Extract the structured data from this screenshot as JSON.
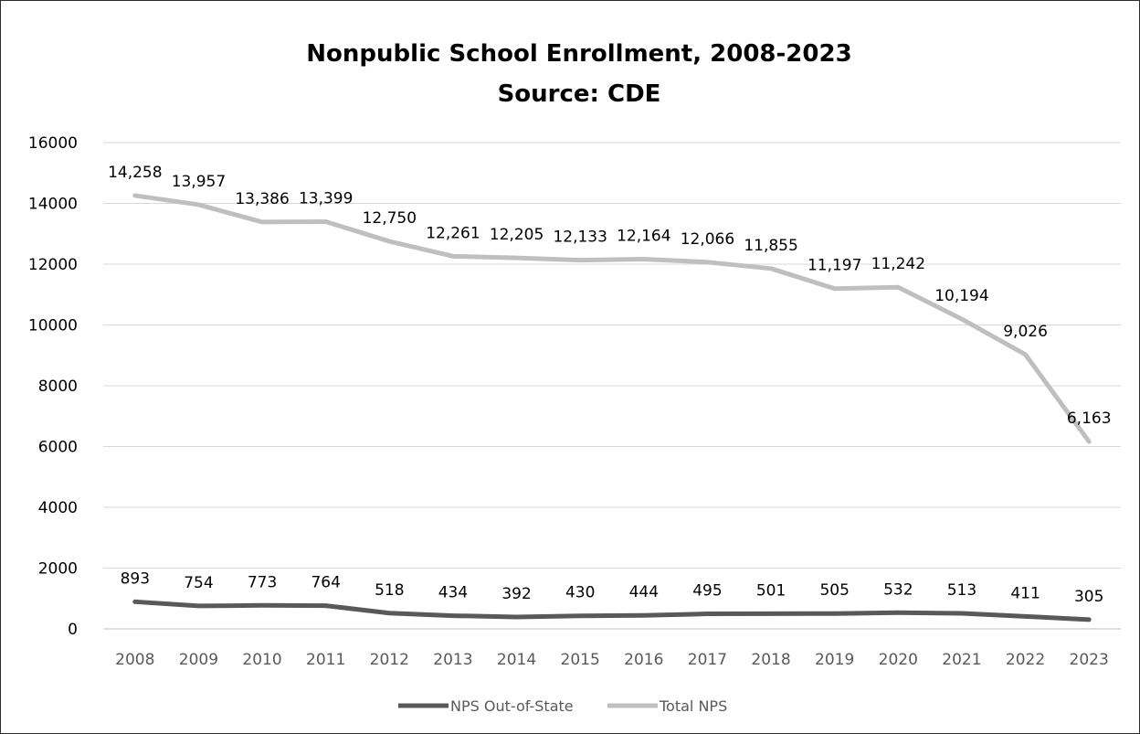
{
  "chart_data": {
    "type": "line",
    "title": "Nonpublic School Enrollment, 2008-2023",
    "subtitle": "Source:  CDE",
    "categories": [
      "2008",
      "2009",
      "2010",
      "2011",
      "2012",
      "2013",
      "2014",
      "2015",
      "2016",
      "2017",
      "2018",
      "2019",
      "2020",
      "2021",
      "2022",
      "2023"
    ],
    "ylim": [
      0,
      16000
    ],
    "yticks": [
      "0",
      "2000",
      "4000",
      "6000",
      "8000",
      "10000",
      "12000",
      "14000",
      "16000"
    ],
    "grid": true,
    "legend_position": "bottom",
    "series": [
      {
        "name": "NPS Out-of-State",
        "color": "#595959",
        "values": [
          893,
          754,
          773,
          764,
          518,
          434,
          392,
          430,
          444,
          495,
          501,
          505,
          532,
          513,
          411,
          305
        ],
        "labels": [
          "893",
          "754",
          "773",
          "764",
          "518",
          "434",
          "392",
          "430",
          "444",
          "495",
          "501",
          "505",
          "532",
          "513",
          "411",
          "305"
        ]
      },
      {
        "name": "Total NPS",
        "color": "#bfbfbf",
        "values": [
          14258,
          13957,
          13386,
          13399,
          12750,
          12261,
          12205,
          12133,
          12164,
          12066,
          11855,
          11197,
          11242,
          10194,
          9026,
          6163
        ],
        "labels": [
          "14,258",
          "13,957",
          "13,386",
          "13,399",
          "12,750",
          "12,261",
          "12,205",
          "12,133",
          "12,164",
          "12,066",
          "11,855",
          "11,197",
          "11,242",
          "10,194",
          "9,026",
          "6,163"
        ]
      }
    ]
  }
}
